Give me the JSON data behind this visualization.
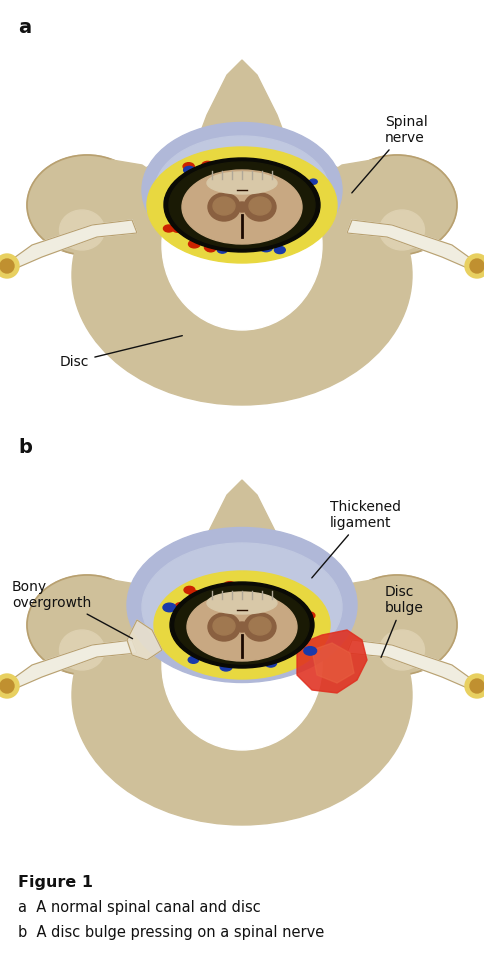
{
  "title": "Figure 1",
  "subtitle_a": "a  A normal spinal canal and disc",
  "subtitle_b": "b  A disc bulge pressing on a spinal nerve",
  "label_a": "a",
  "label_b": "b",
  "bg_color": "#ffffff",
  "bone_color": "#cfc09a",
  "bone_light": "#ddd0b0",
  "bone_dark": "#b8a070",
  "bone_shadow": "#a89060",
  "disc_outer": "#dde0e8",
  "disc_mid": "#c8ccd8",
  "disc_inner": "#e8eaf4",
  "disc_nucleus": "#f0f2ff",
  "canal_yellow": "#e8d840",
  "canal_black": "#101008",
  "cord_tan": "#c8a882",
  "cord_dark": "#8a6040",
  "ligament_blue": "#c0c8e0",
  "ligament_lavender": "#b0b8d8",
  "nerve_white": "#f0ede0",
  "nerve_tip_yellow": "#e8d060",
  "nerve_tip_brown": "#c09030",
  "red_dot": "#cc2200",
  "blue_dot": "#1a3aaa",
  "bulge_red": "#e03020",
  "bulge_orange": "#e86040",
  "bony_color": "#d4c090",
  "text_color": "#111111",
  "ann_line_color": "#111111"
}
